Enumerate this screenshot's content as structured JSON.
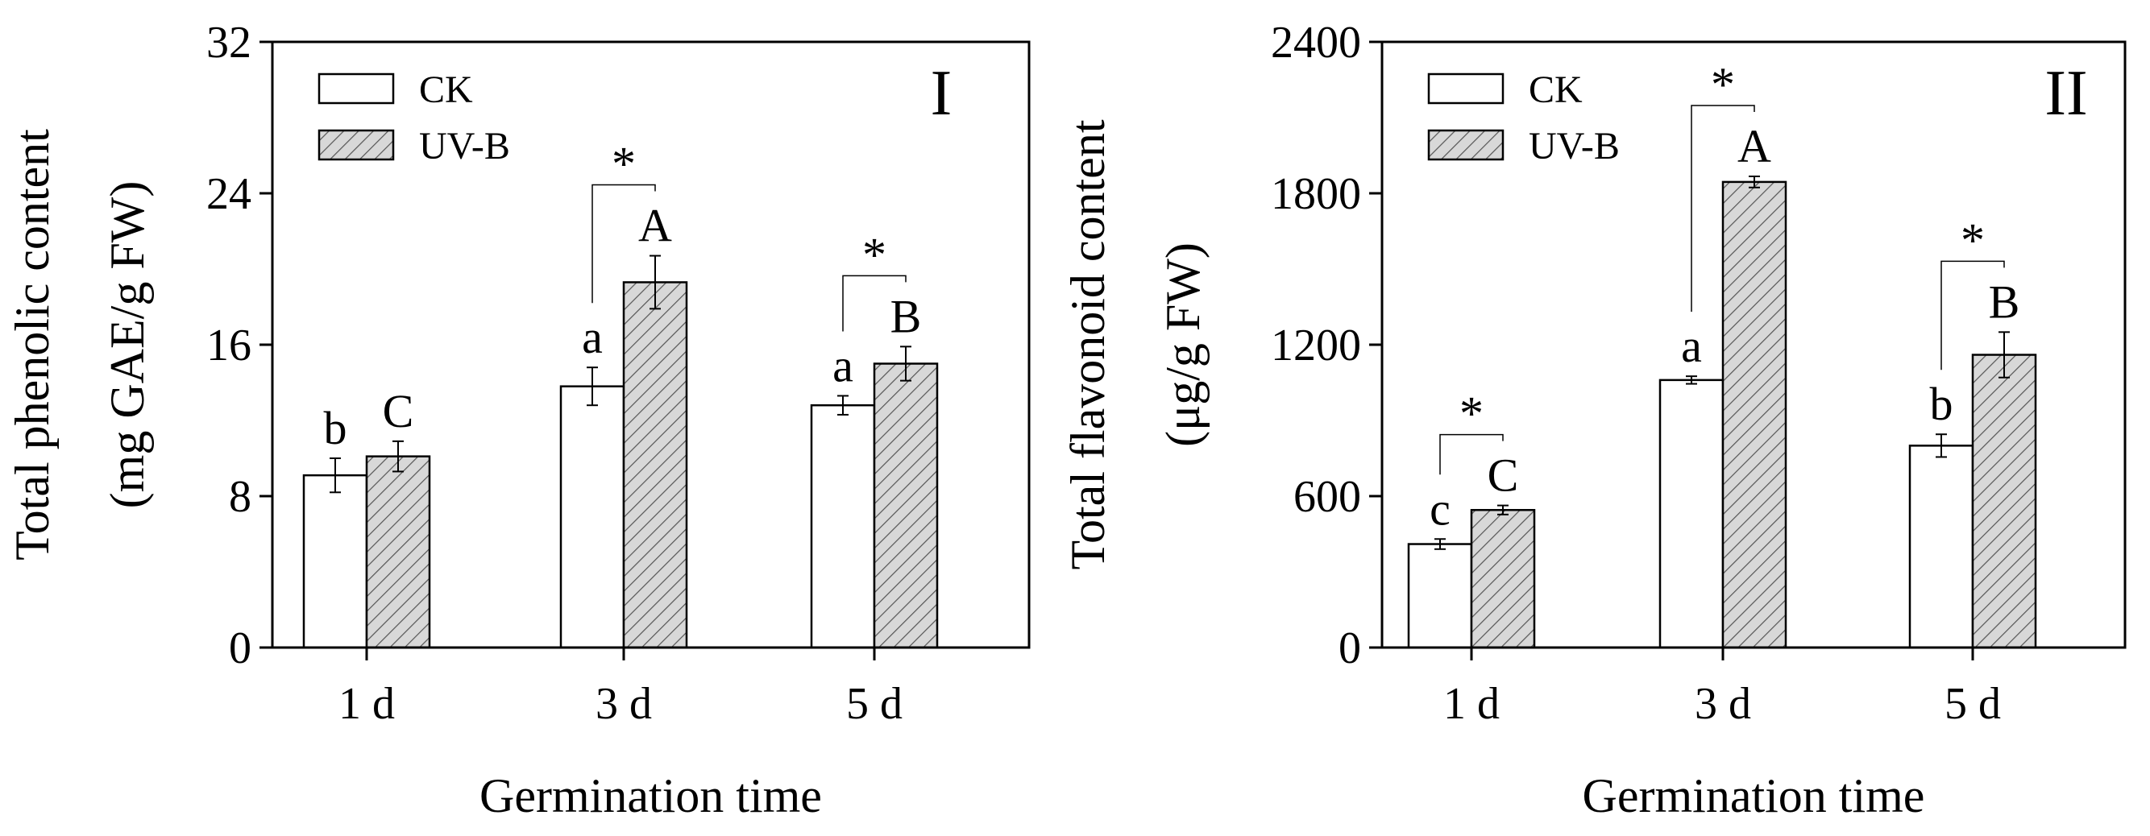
{
  "colors": {
    "panel_label": "#e8160c",
    "axis": "#000000",
    "hatch_fill": "#d8d8d8",
    "bar_ck": "#ffffff"
  },
  "legend": {
    "ck_label": "CK",
    "uvb_label": "UV-B"
  },
  "chart_data": [
    {
      "type": "bar",
      "panel_label": "I",
      "title": "",
      "xlabel": "Germination time",
      "ylabel_line1": "Total phenolic content",
      "ylabel_line2": "(mg GAE/g FW)",
      "ylim": [
        0,
        32
      ],
      "yticks": [
        0,
        8,
        16,
        24,
        32
      ],
      "ytick_labels": [
        "0",
        "8",
        "16",
        "24",
        "32"
      ],
      "categories": [
        "1 d",
        "3 d",
        "5 d"
      ],
      "series": [
        {
          "name": "CK",
          "values": [
            9.1,
            13.8,
            12.8
          ],
          "errors": [
            0.9,
            1.0,
            0.5
          ],
          "letters": [
            "b",
            "a",
            "a"
          ]
        },
        {
          "name": "UV-B",
          "values": [
            10.1,
            19.3,
            15.0
          ],
          "errors": [
            0.8,
            1.4,
            0.9
          ],
          "letters": [
            "C",
            "A",
            "B"
          ]
        }
      ],
      "significance": [
        "",
        "*",
        "*"
      ]
    },
    {
      "type": "bar",
      "panel_label": "II",
      "title": "",
      "xlabel": "Germination time",
      "ylabel_line1": "Total flavonoid content",
      "ylabel_line2": "(μg/g FW)",
      "ylim": [
        0,
        2400
      ],
      "yticks": [
        0,
        600,
        1200,
        1800,
        2400
      ],
      "ytick_labels": [
        "0",
        "600",
        "1200",
        "1800",
        "2400"
      ],
      "categories": [
        "1 d",
        "3 d",
        "5 d"
      ],
      "series": [
        {
          "name": "CK",
          "values": [
            410,
            1060,
            800
          ],
          "errors": [
            20,
            15,
            45
          ],
          "letters": [
            "c",
            "a",
            "b"
          ]
        },
        {
          "name": "UV-B",
          "values": [
            545,
            1845,
            1160
          ],
          "errors": [
            18,
            22,
            90
          ],
          "letters": [
            "C",
            "A",
            "B"
          ]
        }
      ],
      "significance": [
        "*",
        "*",
        "*"
      ]
    }
  ]
}
